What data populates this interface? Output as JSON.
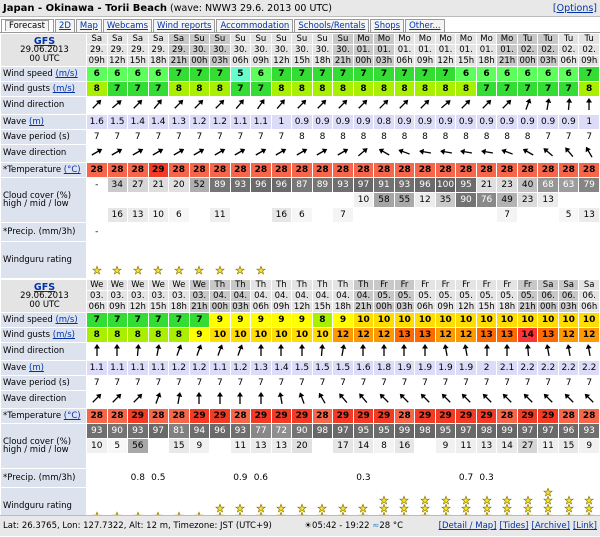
{
  "header": {
    "title": "Japan - Okinawa - Torii Beach",
    "wave_note": "(wave: NWW3 29.6. 2013 00 UTC)",
    "options": "[Options]"
  },
  "tabs": [
    "Forecast",
    "2D",
    "Map",
    "Webcams",
    "Wind reports",
    "Accommodation",
    "Schools/Rentals",
    "Shops",
    "Other..."
  ],
  "labels": {
    "wind_speed": "Wind speed",
    "wind_gusts": "Wind gusts",
    "wind_unit": "(m/s)",
    "wind_direction": "Wind direction",
    "wave": "Wave",
    "wave_unit": "(m)",
    "wave_period": "Wave period (s)",
    "wave_direction": "Wave direction",
    "temperature": "*Temperature",
    "temperature_unit": "(°C)",
    "cloud": "Cloud cover (%)",
    "cloud_levels": "high / mid / low",
    "precip": "*Precip. (mm/3h)",
    "rating": "Windguru rating"
  },
  "forecasts": [
    {
      "model": "GFS",
      "date": "29.06.2013",
      "run": "00 UTC",
      "days": [
        "Sa",
        "Sa",
        "Sa",
        "Sa",
        "Sa",
        "Su",
        "Su",
        "Su",
        "Su",
        "Su",
        "Su",
        "Su",
        "Su",
        "Mo",
        "Mo",
        "Mo",
        "Mo",
        "Mo",
        "Mo",
        "Mo",
        "Mo",
        "Tu",
        "Tu",
        "Tu",
        "Tu"
      ],
      "dates": [
        "29.",
        "29.",
        "29.",
        "29.",
        "29.",
        "30.",
        "30.",
        "30.",
        "30.",
        "30.",
        "30.",
        "30.",
        "30.",
        "01.",
        "01.",
        "01.",
        "01.",
        "01.",
        "01.",
        "01.",
        "01.",
        "02.",
        "02.",
        "02.",
        "02."
      ],
      "hours": [
        "09h",
        "12h",
        "15h",
        "18h",
        "21h",
        "00h",
        "03h",
        "06h",
        "09h",
        "12h",
        "15h",
        "18h",
        "21h",
        "00h",
        "03h",
        "06h",
        "09h",
        "12h",
        "15h",
        "18h",
        "21h",
        "00h",
        "03h",
        "06h",
        "09h"
      ],
      "wind_speed": [
        6,
        6,
        6,
        6,
        7,
        7,
        7,
        5,
        6,
        7,
        7,
        7,
        7,
        7,
        7,
        7,
        7,
        7,
        6,
        6,
        6,
        6,
        6,
        6,
        7
      ],
      "wind_gusts": [
        8,
        7,
        7,
        7,
        8,
        8,
        8,
        7,
        7,
        8,
        8,
        8,
        8,
        8,
        8,
        8,
        8,
        8,
        8,
        7,
        7,
        7,
        7,
        7,
        8
      ],
      "wind_direction": [
        225,
        230,
        225,
        220,
        225,
        225,
        225,
        220,
        215,
        220,
        225,
        225,
        225,
        225,
        225,
        225,
        225,
        230,
        225,
        225,
        225,
        200,
        190,
        185,
        180
      ],
      "wave": [
        1.6,
        1.5,
        1.4,
        1.4,
        1.3,
        1.2,
        1.2,
        1.1,
        1.1,
        1,
        0.9,
        0.9,
        0.9,
        0.9,
        0.8,
        0.9,
        0.9,
        0.9,
        0.9,
        0.9,
        0.9,
        0.9,
        0.9,
        0.9,
        1
      ],
      "wave_period": [
        7,
        7,
        7,
        7,
        7,
        7,
        7,
        7,
        7,
        7,
        8,
        8,
        8,
        8,
        8,
        8,
        8,
        8,
        8,
        8,
        8,
        8,
        7,
        7,
        7
      ],
      "wave_direction": [
        240,
        240,
        240,
        240,
        240,
        240,
        240,
        240,
        240,
        240,
        240,
        240,
        240,
        230,
        120,
        110,
        100,
        100,
        100,
        100,
        110,
        120,
        130,
        140,
        150
      ],
      "temperature": [
        28,
        28,
        28,
        29,
        28,
        28,
        28,
        28,
        28,
        28,
        28,
        28,
        28,
        28,
        28,
        28,
        28,
        28,
        28,
        28,
        28,
        28,
        28,
        28,
        28
      ],
      "cloud_high": [
        "-",
        34,
        27,
        21,
        20,
        52,
        89,
        93,
        96,
        96,
        87,
        89,
        93,
        97,
        91,
        93,
        96,
        100,
        95,
        21,
        23,
        40,
        68,
        63,
        79
      ],
      "cloud_mid": [
        null,
        null,
        null,
        null,
        null,
        null,
        null,
        null,
        null,
        null,
        null,
        null,
        null,
        10,
        58,
        55,
        12,
        35,
        90,
        76,
        49,
        23,
        13,
        null,
        null
      ],
      "cloud_low": [
        null,
        16,
        13,
        10,
        6,
        null,
        11,
        null,
        null,
        16,
        6,
        null,
        7,
        null,
        null,
        null,
        null,
        null,
        null,
        null,
        7,
        null,
        null,
        5,
        13
      ],
      "precip": [
        "-",
        null,
        null,
        null,
        null,
        null,
        null,
        null,
        null,
        null,
        null,
        null,
        null,
        null,
        null,
        null,
        null,
        null,
        null,
        null,
        null,
        null,
        null,
        null,
        null
      ],
      "rating": [
        1,
        1,
        1,
        1,
        1,
        1,
        1,
        1,
        1,
        0,
        0,
        0,
        0,
        0,
        0,
        0,
        0,
        0,
        0,
        0,
        0,
        0,
        0,
        0,
        0
      ]
    },
    {
      "model": "GFS",
      "date": "29.06.2013",
      "run": "00 UTC",
      "days": [
        "We",
        "We",
        "We",
        "We",
        "We",
        "We",
        "Th",
        "Th",
        "Th",
        "Th",
        "Th",
        "Th",
        "Th",
        "Th",
        "Fr",
        "Fr",
        "Fr",
        "Fr",
        "Fr",
        "Fr",
        "Fr",
        "Fr",
        "Sa",
        "Sa",
        "Sa"
      ],
      "dates": [
        "03.",
        "03.",
        "03.",
        "03.",
        "03.",
        "03.",
        "04.",
        "04.",
        "04.",
        "04.",
        "04.",
        "04.",
        "04.",
        "04.",
        "05.",
        "05.",
        "05.",
        "05.",
        "05.",
        "05.",
        "05.",
        "05.",
        "06.",
        "06.",
        "06."
      ],
      "hours": [
        "06h",
        "09h",
        "12h",
        "15h",
        "18h",
        "21h",
        "00h",
        "03h",
        "06h",
        "09h",
        "12h",
        "15h",
        "18h",
        "21h",
        "00h",
        "03h",
        "06h",
        "09h",
        "12h",
        "15h",
        "18h",
        "21h",
        "00h",
        "03h",
        "06h"
      ],
      "wind_speed": [
        7,
        7,
        7,
        7,
        7,
        7,
        9,
        9,
        9,
        9,
        9,
        8,
        9,
        10,
        10,
        10,
        10,
        10,
        10,
        10,
        10,
        10,
        10,
        10,
        10
      ],
      "wind_gusts": [
        8,
        8,
        8,
        8,
        8,
        9,
        10,
        10,
        10,
        10,
        10,
        10,
        12,
        12,
        12,
        13,
        13,
        12,
        12,
        13,
        13,
        14,
        13,
        12,
        12
      ],
      "wind_direction": [
        180,
        180,
        185,
        190,
        200,
        200,
        200,
        200,
        180,
        180,
        180,
        185,
        190,
        180,
        180,
        180,
        180,
        170,
        170,
        180,
        180,
        175,
        170,
        170,
        170
      ],
      "wave": [
        1.1,
        1.1,
        1.1,
        1.1,
        1.2,
        1.2,
        1.1,
        1.2,
        1.3,
        1.4,
        1.5,
        1.5,
        1.5,
        1.6,
        1.8,
        1.9,
        1.9,
        1.9,
        1.9,
        2,
        2.1,
        2.2,
        2.2,
        2.2,
        2.2
      ],
      "wave_period": [
        7,
        7,
        7,
        7,
        7,
        7,
        7,
        7,
        7,
        7,
        7,
        7,
        7,
        7,
        7,
        7,
        7,
        7,
        7,
        7,
        7,
        7,
        7,
        7,
        7
      ],
      "wave_direction": [
        225,
        225,
        225,
        200,
        190,
        180,
        180,
        180,
        180,
        170,
        160,
        150,
        140,
        140,
        135,
        135,
        135,
        135,
        135,
        135,
        135,
        135,
        135,
        135,
        135
      ],
      "temperature": [
        28,
        28,
        29,
        28,
        28,
        29,
        29,
        28,
        29,
        29,
        29,
        28,
        29,
        29,
        29,
        28,
        29,
        29,
        29,
        29,
        28,
        29,
        29,
        28,
        28
      ],
      "cloud_high": [
        93,
        90,
        93,
        97,
        81,
        94,
        96,
        93,
        77,
        72,
        90,
        98,
        97,
        95,
        95,
        99,
        98,
        95,
        97,
        98,
        99,
        97,
        97,
        96,
        93
      ],
      "cloud_mid": [
        10,
        5,
        56,
        null,
        15,
        9,
        null,
        11,
        13,
        13,
        20,
        null,
        17,
        14,
        8,
        16,
        null,
        9,
        11,
        13,
        14,
        27,
        11,
        15,
        9
      ],
      "cloud_low": [
        null,
        null,
        null,
        null,
        null,
        null,
        null,
        null,
        null,
        null,
        null,
        null,
        null,
        null,
        null,
        null,
        null,
        null,
        null,
        null,
        null,
        null,
        null,
        null,
        null
      ],
      "precip": [
        null,
        null,
        0.8,
        0.5,
        null,
        null,
        null,
        0.9,
        0.6,
        null,
        null,
        null,
        null,
        0.3,
        null,
        null,
        null,
        null,
        0.7,
        0.3,
        null,
        null,
        null,
        null,
        null
      ],
      "rating": [
        1,
        1,
        1,
        1,
        1,
        1,
        2,
        2,
        2,
        2,
        2,
        2,
        2,
        2,
        3,
        3,
        3,
        3,
        3,
        3,
        3,
        3,
        4,
        3,
        3
      ]
    }
  ],
  "footer": {
    "location": "Lat: 26.3765, Lon: 127.7322, Alt: 12 m, Timezone: JST (UTC+9)",
    "sun": "05:42 - 19:22",
    "water_temp": "28 °C",
    "links": [
      "[Detail / Map]",
      "[Tides]",
      "[Archive]",
      "[Link]"
    ]
  }
}
